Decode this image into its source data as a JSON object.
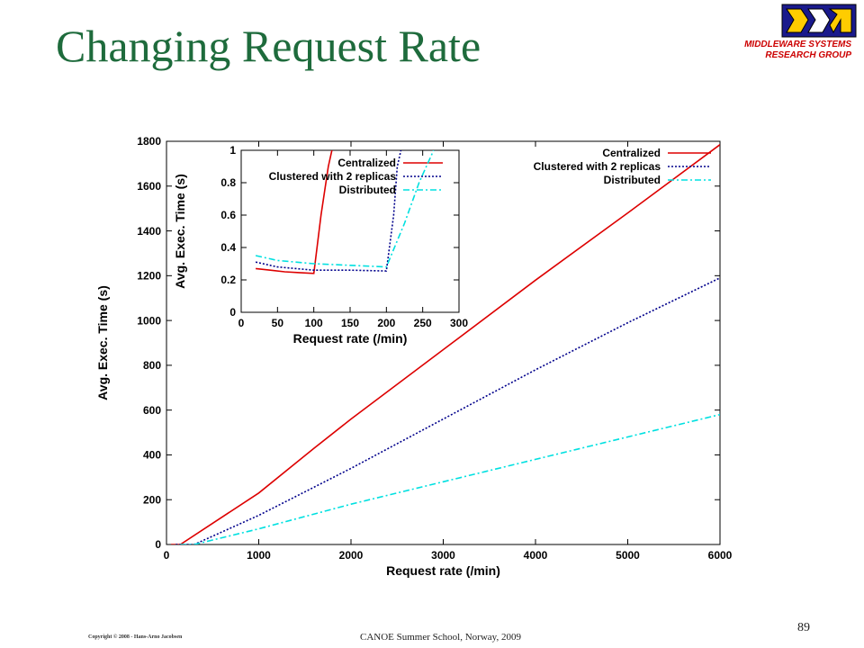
{
  "slide": {
    "title": "Changing Request Rate",
    "group_line1": "MIDDLEWARE SYSTEMS",
    "group_line2": "RESEARCH GROUP",
    "copyright": "Copyright © 2008 - Hans-Arno Jacobsen",
    "footer": "CANOE Summer School, Norway, 2009",
    "page_number": "89"
  },
  "colors": {
    "title": "#1e6b3c",
    "brand_red": "#cc0000",
    "centralized": "#dd0000",
    "clustered": "#00008b",
    "distributed": "#00e0e0"
  },
  "chart_data": [
    {
      "type": "line",
      "xlabel": "Request rate (/min)",
      "ylabel": "Avg. Exec. Time (s)",
      "xlim": [
        0,
        6000
      ],
      "ylim": [
        0,
        1800
      ],
      "xticks": [
        0,
        1000,
        2000,
        3000,
        4000,
        5000,
        6000
      ],
      "yticks": [
        0,
        200,
        400,
        600,
        800,
        1000,
        1200,
        1400,
        1600,
        1800
      ],
      "legend_position": "top-right",
      "grid": false,
      "series": [
        {
          "name": "Centralized",
          "style": "solid",
          "x": [
            50,
            150,
            1000,
            1600,
            2000,
            3000,
            4000,
            5000,
            6000
          ],
          "y": [
            0,
            0,
            230,
            430,
            560,
            870,
            1180,
            1480,
            1785
          ]
        },
        {
          "name": "Clustered with 2 replicas",
          "style": "dotted",
          "x": [
            100,
            300,
            1000,
            2000,
            3000,
            4000,
            5000,
            6000
          ],
          "y": [
            0,
            0,
            130,
            340,
            560,
            780,
            990,
            1190
          ]
        },
        {
          "name": "Distributed",
          "style": "dash-dot",
          "x": [
            150,
            300,
            1000,
            2000,
            3000,
            4000,
            5000,
            6000
          ],
          "y": [
            0,
            0,
            70,
            180,
            280,
            380,
            480,
            580
          ]
        }
      ]
    },
    {
      "type": "line",
      "xlabel": "Request rate (/min)",
      "ylabel": "Avg. Exec. Time (s)",
      "xlim": [
        0,
        300
      ],
      "ylim": [
        0,
        1
      ],
      "xticks": [
        0,
        50,
        100,
        150,
        200,
        250,
        300
      ],
      "yticks": [
        0,
        0.2,
        0.4,
        0.6,
        0.8,
        1
      ],
      "legend_position": "top-right",
      "grid": false,
      "series": [
        {
          "name": "Centralized",
          "style": "solid",
          "x": [
            20,
            40,
            60,
            80,
            100,
            110,
            120,
            125
          ],
          "y": [
            0.27,
            0.26,
            0.25,
            0.245,
            0.24,
            0.6,
            0.9,
            1.0
          ]
        },
        {
          "name": "Clustered with 2 replicas",
          "style": "dotted",
          "x": [
            20,
            50,
            100,
            150,
            200,
            210,
            215,
            220
          ],
          "y": [
            0.31,
            0.28,
            0.26,
            0.26,
            0.255,
            0.6,
            0.9,
            1.0
          ]
        },
        {
          "name": "Distributed",
          "style": "dash-dot",
          "x": [
            20,
            50,
            100,
            150,
            200,
            225,
            245,
            265
          ],
          "y": [
            0.35,
            0.32,
            0.3,
            0.29,
            0.28,
            0.55,
            0.8,
            1.0
          ]
        }
      ]
    }
  ]
}
